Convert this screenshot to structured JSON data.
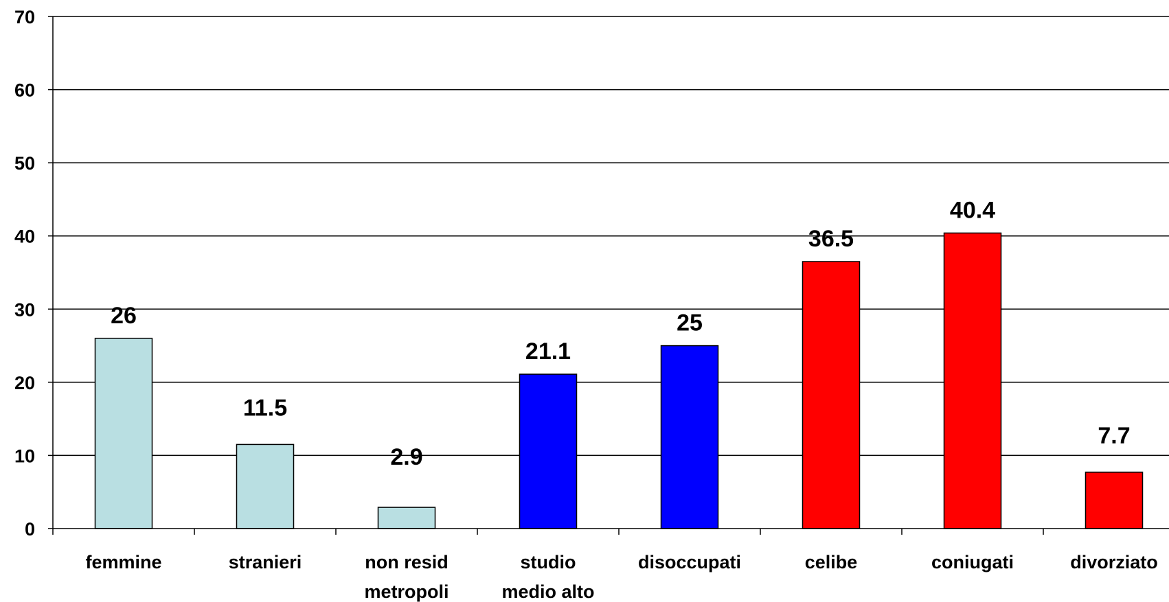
{
  "chart_data": {
    "type": "bar",
    "categories": [
      [
        "femmine"
      ],
      [
        "stranieri"
      ],
      [
        "non resid",
        "metropoli"
      ],
      [
        "studio",
        "medio alto"
      ],
      [
        "disoccupati"
      ],
      [
        "celibe"
      ],
      [
        "coniugati"
      ],
      [
        "divorziato"
      ]
    ],
    "values": [
      26,
      11.5,
      2.9,
      21.1,
      25,
      36.5,
      40.4,
      7.7
    ],
    "value_labels": [
      "26",
      "11.5",
      "2.9",
      "21.1",
      "25",
      "36.5",
      "40.4",
      "7.7"
    ],
    "bar_colors": [
      "#b9dfe2",
      "#b9dfe2",
      "#b9dfe2",
      "#0000ff",
      "#0000ff",
      "#ff0000",
      "#ff0000",
      "#ff0000"
    ],
    "ylim": [
      0,
      70
    ],
    "yticks": [
      0,
      10,
      20,
      30,
      40,
      50,
      60,
      70
    ],
    "grid": true,
    "title": "",
    "xlabel": "",
    "ylabel": ""
  }
}
